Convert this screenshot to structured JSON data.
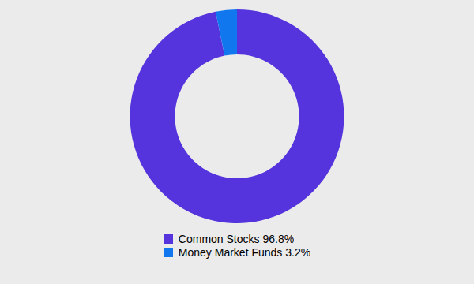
{
  "chart_data": {
    "type": "donut",
    "categories": [
      "Common Stocks 96.8%",
      "Money Market Funds 3.2%"
    ],
    "values": [
      96.8,
      3.2
    ],
    "colors": [
      "#5533dd",
      "#1177ee"
    ]
  }
}
